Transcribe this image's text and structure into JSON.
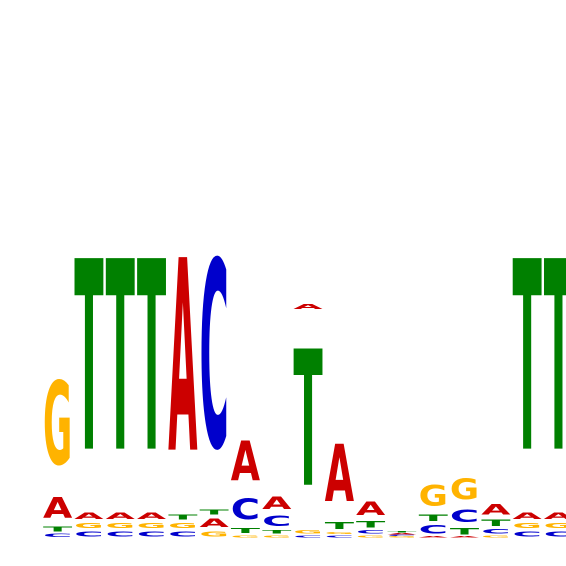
{
  "chart_data": {
    "type": "sequence-logo",
    "title": "",
    "xlabel": "",
    "ylabel": "",
    "ylim": [
      0,
      2
    ],
    "alphabet": [
      "A",
      "C",
      "G",
      "T"
    ],
    "colors": {
      "A": "#cc0000",
      "C": "#0000cc",
      "G": "#ffb300",
      "T": "#008000"
    },
    "positions": [
      {
        "stack": [
          {
            "base": "C",
            "height": 0.03
          },
          {
            "base": "T",
            "height": 0.05
          },
          {
            "base": "A",
            "height": 0.2
          },
          {
            "base": "G",
            "height": 0.8
          }
        ]
      },
      {
        "stack": [
          {
            "base": "C",
            "height": 0.05
          },
          {
            "base": "G",
            "height": 0.05
          },
          {
            "base": "A",
            "height": 0.06
          },
          {
            "base": "T",
            "height": 1.83
          }
        ]
      },
      {
        "stack": [
          {
            "base": "C",
            "height": 0.05
          },
          {
            "base": "G",
            "height": 0.05
          },
          {
            "base": "A",
            "height": 0.06
          },
          {
            "base": "T",
            "height": 1.83
          }
        ]
      },
      {
        "stack": [
          {
            "base": "C",
            "height": 0.05
          },
          {
            "base": "G",
            "height": 0.05
          },
          {
            "base": "A",
            "height": 0.06
          },
          {
            "base": "T",
            "height": 1.83
          }
        ]
      },
      {
        "stack": [
          {
            "base": "C",
            "height": 0.05
          },
          {
            "base": "G",
            "height": 0.05
          },
          {
            "base": "T",
            "height": 0.05
          },
          {
            "base": "A",
            "height": 1.85
          }
        ]
      },
      {
        "stack": [
          {
            "base": "G",
            "height": 0.05
          },
          {
            "base": "A",
            "height": 0.08
          },
          {
            "base": "T",
            "height": 0.05
          },
          {
            "base": "C",
            "height": 1.8
          }
        ]
      },
      {
        "stack": [
          {
            "base": "G",
            "height": 0.02
          },
          {
            "base": "T",
            "height": 0.05
          },
          {
            "base": "C",
            "height": 0.2
          },
          {
            "base": "A",
            "height": 0.38
          }
        ]
      },
      {
        "stack": [
          {
            "base": "G",
            "height": 0.02
          },
          {
            "base": "T",
            "height": 0.03
          },
          {
            "base": "C",
            "height": 0.1
          },
          {
            "base": "A",
            "height": 0.12
          }
        ]
      },
      {
        "stack": [
          {
            "base": "C",
            "height": 0.02
          },
          {
            "base": "G",
            "height": 0.03
          },
          {
            "base": "T",
            "height": 1.31
          },
          {
            "base": "A",
            "height": 0.05
          }
        ]
      },
      {
        "stack": [
          {
            "base": "C",
            "height": 0.02
          },
          {
            "base": "G",
            "height": 0.02
          },
          {
            "base": "T",
            "height": 0.07
          },
          {
            "base": "A",
            "height": 0.55
          }
        ]
      },
      {
        "stack": [
          {
            "base": "G",
            "height": 0.02
          },
          {
            "base": "C",
            "height": 0.03
          },
          {
            "base": "T",
            "height": 0.06
          },
          {
            "base": "A",
            "height": 0.13
          }
        ]
      },
      {
        "stack": [
          {
            "base": "G",
            "height": 0.01
          },
          {
            "base": "C",
            "height": 0.01
          },
          {
            "base": "A",
            "height": 0.01
          },
          {
            "base": "T",
            "height": 0.01
          }
        ]
      },
      {
        "stack": [
          {
            "base": "A",
            "height": 0.01
          },
          {
            "base": "C",
            "height": 0.08
          },
          {
            "base": "T",
            "height": 0.06
          },
          {
            "base": "G",
            "height": 0.2
          }
        ]
      },
      {
        "stack": [
          {
            "base": "A",
            "height": 0.01
          },
          {
            "base": "T",
            "height": 0.06
          },
          {
            "base": "C",
            "height": 0.12
          },
          {
            "base": "G",
            "height": 0.2
          }
        ]
      },
      {
        "stack": [
          {
            "base": "G",
            "height": 0.02
          },
          {
            "base": "C",
            "height": 0.04
          },
          {
            "base": "T",
            "height": 0.06
          },
          {
            "base": "A",
            "height": 0.1
          }
        ]
      },
      {
        "stack": [
          {
            "base": "C",
            "height": 0.05
          },
          {
            "base": "G",
            "height": 0.05
          },
          {
            "base": "A",
            "height": 0.06
          },
          {
            "base": "T",
            "height": 1.83
          }
        ]
      },
      {
        "stack": [
          {
            "base": "C",
            "height": 0.05
          },
          {
            "base": "G",
            "height": 0.05
          },
          {
            "base": "A",
            "height": 0.06
          },
          {
            "base": "T",
            "height": 1.83
          }
        ]
      }
    ]
  }
}
